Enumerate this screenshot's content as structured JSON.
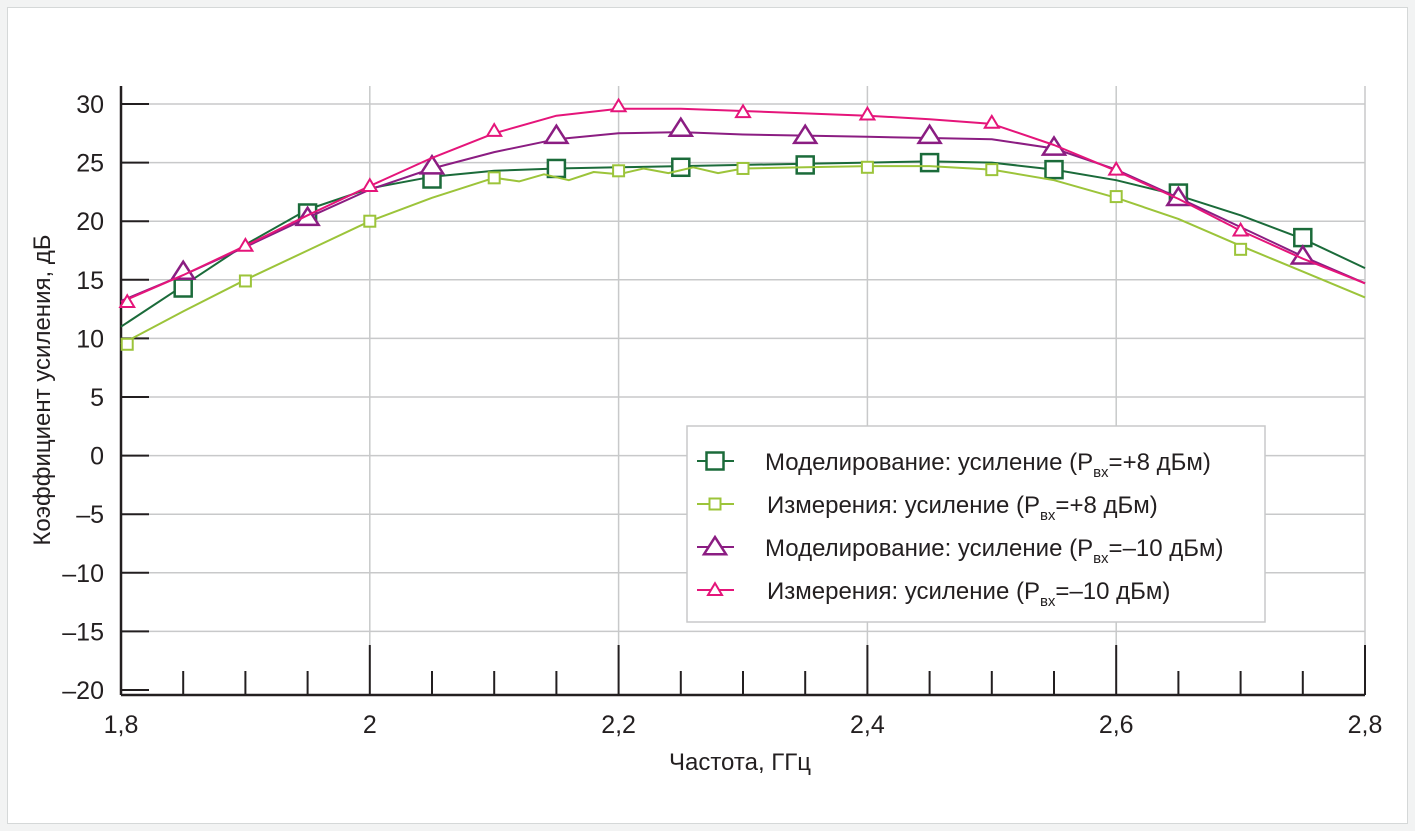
{
  "colors": {
    "grid": "#c8c9ca",
    "axis": "#231f20",
    "sim_p8": "#1b6b3a",
    "meas_p8": "#9cc43a",
    "sim_m10": "#8b1d82",
    "meas_m10": "#e5157a"
  },
  "chart_data": {
    "type": "line",
    "xlabel": "Частота, ГГц",
    "ylabel": "Коэффициент усиления, дБ",
    "xlim": [
      1.8,
      2.8
    ],
    "ylim": [
      -20,
      30
    ],
    "grid": true,
    "legend_position": "inside-bottom-right",
    "x_ticks": [
      "1,8",
      "2",
      "2,2",
      "2,4",
      "2,6",
      "2,8"
    ],
    "x_tick_values": [
      1.8,
      2.0,
      2.2,
      2.4,
      2.6,
      2.8
    ],
    "y_ticks": [
      "30",
      "25",
      "20",
      "15",
      "10",
      "5",
      "0",
      "–5",
      "–10",
      "–15",
      "–20"
    ],
    "y_tick_values": [
      30,
      25,
      20,
      15,
      10,
      5,
      0,
      -5,
      -10,
      -15,
      -20
    ],
    "series": [
      {
        "id": "sim_p8",
        "name": "Моделирование: усиление (Pвх=+8 дБм)",
        "legend_main": "Моделирование: усиление (P",
        "legend_sub": "вх",
        "legend_tail": "=+8 дБм)",
        "marker": "square-large",
        "line": [
          [
            1.8,
            11.0
          ],
          [
            1.85,
            14.5
          ],
          [
            1.9,
            18.0
          ],
          [
            1.95,
            21.0
          ],
          [
            2.0,
            22.8
          ],
          [
            2.05,
            23.8
          ],
          [
            2.1,
            24.3
          ],
          [
            2.15,
            24.5
          ],
          [
            2.2,
            24.6
          ],
          [
            2.25,
            24.7
          ],
          [
            2.3,
            24.8
          ],
          [
            2.35,
            24.9
          ],
          [
            2.4,
            25.0
          ],
          [
            2.45,
            25.1
          ],
          [
            2.5,
            25.0
          ],
          [
            2.55,
            24.4
          ],
          [
            2.6,
            23.5
          ],
          [
            2.65,
            22.2
          ],
          [
            2.7,
            20.5
          ],
          [
            2.75,
            18.5
          ],
          [
            2.8,
            16.0
          ]
        ],
        "markers": [
          [
            1.85,
            14.3
          ],
          [
            1.95,
            20.7
          ],
          [
            2.05,
            23.6
          ],
          [
            2.15,
            24.5
          ],
          [
            2.25,
            24.6
          ],
          [
            2.35,
            24.8
          ],
          [
            2.45,
            25.0
          ],
          [
            2.55,
            24.4
          ],
          [
            2.65,
            22.4
          ],
          [
            2.75,
            18.6
          ]
        ]
      },
      {
        "id": "meas_p8",
        "name": "Измерения: усиление (Pвх=+8 дБм)",
        "legend_main": "Измерения: усиление (P",
        "legend_sub": "вх",
        "legend_tail": "=+8 дБм)",
        "marker": "square-small",
        "line": [
          [
            1.8,
            9.5
          ],
          [
            1.85,
            12.3
          ],
          [
            1.9,
            15.0
          ],
          [
            1.95,
            17.5
          ],
          [
            2.0,
            20.0
          ],
          [
            2.05,
            22.0
          ],
          [
            2.1,
            23.7
          ],
          [
            2.12,
            23.4
          ],
          [
            2.14,
            24.0
          ],
          [
            2.16,
            23.5
          ],
          [
            2.18,
            24.2
          ],
          [
            2.2,
            24.0
          ],
          [
            2.22,
            24.5
          ],
          [
            2.24,
            24.1
          ],
          [
            2.26,
            24.6
          ],
          [
            2.28,
            24.1
          ],
          [
            2.3,
            24.5
          ],
          [
            2.35,
            24.6
          ],
          [
            2.4,
            24.7
          ],
          [
            2.45,
            24.7
          ],
          [
            2.5,
            24.4
          ],
          [
            2.55,
            23.5
          ],
          [
            2.6,
            22.0
          ],
          [
            2.65,
            20.2
          ],
          [
            2.7,
            17.9
          ],
          [
            2.75,
            15.7
          ],
          [
            2.8,
            13.5
          ]
        ],
        "markers": [
          [
            1.805,
            9.5
          ],
          [
            1.9,
            14.9
          ],
          [
            2.0,
            20.0
          ],
          [
            2.1,
            23.7
          ],
          [
            2.2,
            24.3
          ],
          [
            2.3,
            24.5
          ],
          [
            2.4,
            24.6
          ],
          [
            2.5,
            24.4
          ],
          [
            2.6,
            22.1
          ],
          [
            2.7,
            17.6
          ]
        ]
      },
      {
        "id": "sim_m10",
        "name": "Моделирование: усиление (Pвх=–10 дБм)",
        "legend_main": "Моделирование: усиление (P",
        "legend_sub": "вх",
        "legend_tail": "=–10 дБм)",
        "marker": "triangle-large",
        "line": [
          [
            1.8,
            13.2
          ],
          [
            1.85,
            15.4
          ],
          [
            1.9,
            17.8
          ],
          [
            1.95,
            20.3
          ],
          [
            2.0,
            22.7
          ],
          [
            2.05,
            24.5
          ],
          [
            2.1,
            25.9
          ],
          [
            2.15,
            27.0
          ],
          [
            2.2,
            27.5
          ],
          [
            2.25,
            27.6
          ],
          [
            2.3,
            27.4
          ],
          [
            2.35,
            27.3
          ],
          [
            2.4,
            27.2
          ],
          [
            2.45,
            27.1
          ],
          [
            2.5,
            27.0
          ],
          [
            2.55,
            26.2
          ],
          [
            2.6,
            24.4
          ],
          [
            2.65,
            22.0
          ],
          [
            2.7,
            19.5
          ],
          [
            2.75,
            17.0
          ],
          [
            2.8,
            14.7
          ]
        ],
        "markers": [
          [
            1.85,
            15.7
          ],
          [
            1.95,
            20.3
          ],
          [
            2.05,
            24.7
          ],
          [
            2.15,
            27.3
          ],
          [
            2.25,
            27.9
          ],
          [
            2.35,
            27.3
          ],
          [
            2.45,
            27.3
          ],
          [
            2.55,
            26.3
          ],
          [
            2.65,
            22.0
          ],
          [
            2.75,
            17.0
          ]
        ]
      },
      {
        "id": "meas_m10",
        "name": "Измерения: усиление (Pвх=–10 дБм)",
        "legend_main": "Измерения: усиление (P",
        "legend_sub": "вх",
        "legend_tail": "=–10 дБм)",
        "marker": "triangle-small",
        "line": [
          [
            1.8,
            13.1
          ],
          [
            1.85,
            15.4
          ],
          [
            1.9,
            17.9
          ],
          [
            1.95,
            20.5
          ],
          [
            2.0,
            23.0
          ],
          [
            2.05,
            25.4
          ],
          [
            2.1,
            27.5
          ],
          [
            2.15,
            29.0
          ],
          [
            2.2,
            29.6
          ],
          [
            2.25,
            29.6
          ],
          [
            2.3,
            29.4
          ],
          [
            2.35,
            29.2
          ],
          [
            2.4,
            29.0
          ],
          [
            2.45,
            28.7
          ],
          [
            2.5,
            28.3
          ],
          [
            2.55,
            26.5
          ],
          [
            2.6,
            24.3
          ],
          [
            2.65,
            21.9
          ],
          [
            2.7,
            19.2
          ],
          [
            2.75,
            16.8
          ],
          [
            2.8,
            14.7
          ]
        ],
        "markers": [
          [
            1.805,
            13.1
          ],
          [
            1.9,
            17.9
          ],
          [
            2.0,
            23.0
          ],
          [
            2.1,
            27.7
          ],
          [
            2.2,
            29.8
          ],
          [
            2.3,
            29.3
          ],
          [
            2.4,
            29.1
          ],
          [
            2.5,
            28.4
          ],
          [
            2.6,
            24.4
          ],
          [
            2.7,
            19.2
          ]
        ]
      }
    ]
  }
}
